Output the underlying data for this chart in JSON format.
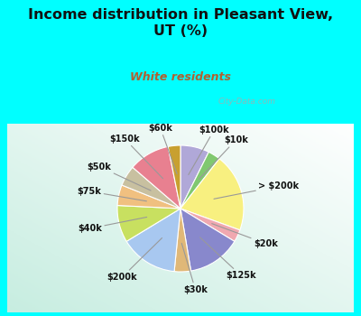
{
  "title": "Income distribution in Pleasant View,\nUT (%)",
  "subtitle": "White residents",
  "title_color": "#111111",
  "subtitle_color": "#b06030",
  "background_color": "#00ffff",
  "chart_bg_top": "#e8f5f0",
  "chart_bg_bottom": "#c8ecd8",
  "watermark": "City-Data.com",
  "labels": [
    "$100k",
    "$10k",
    "> $200k",
    "$20k",
    "$125k",
    "$30k",
    "$200k",
    "$40k",
    "$75k",
    "$50k",
    "$150k",
    "$60k"
  ],
  "values": [
    7,
    3,
    19,
    3,
    13,
    4,
    14,
    9,
    5,
    5,
    10,
    3
  ],
  "colors": [
    "#b0a8d8",
    "#80c870",
    "#f8f080",
    "#f0a8b0",
    "#8888cc",
    "#e0b878",
    "#a8c8f0",
    "#c8e060",
    "#f0c080",
    "#c8c0a0",
    "#e88090",
    "#c8a030"
  ],
  "startangle": 90
}
